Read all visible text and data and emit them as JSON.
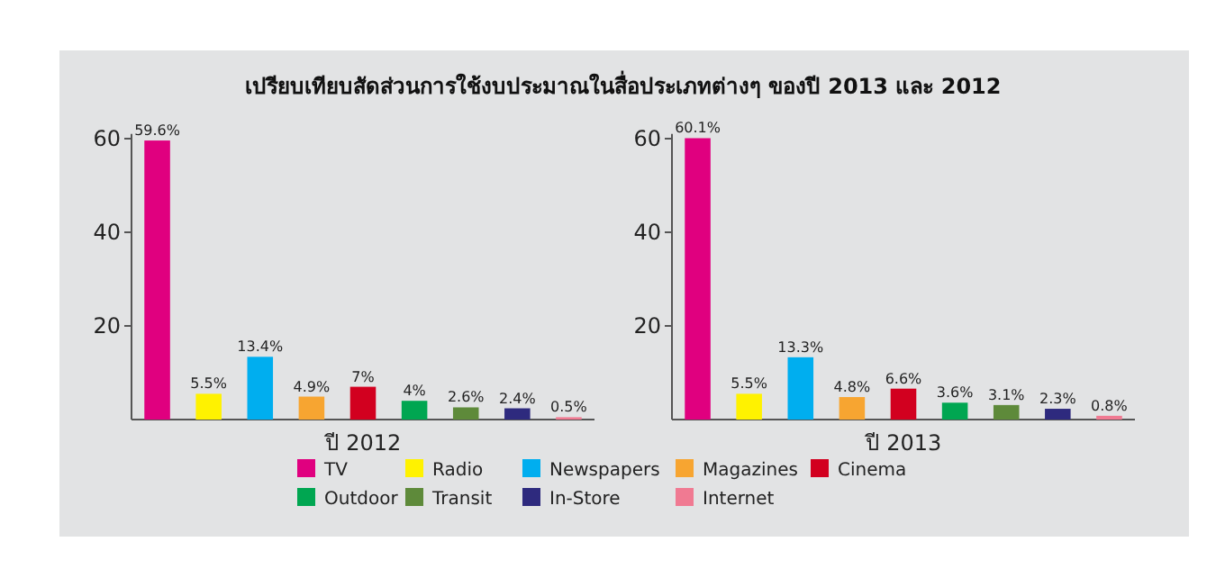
{
  "chart_data": [
    {
      "type": "bar",
      "title": "เปรียบเทียบสัดส่วนการใช้งบประมาณในสื่อประเภทต่างๆ ของปี 2013 และ 2012",
      "xlabel": "ปี 2012",
      "categories": [
        null
      ],
      "series": [
        {
          "name": "TV",
          "color": "#e0007f",
          "values": [
            59.6
          ],
          "value_labels": [
            "59.6%"
          ]
        },
        {
          "name": "Radio",
          "color": "#fff200",
          "values": [
            5.5
          ],
          "value_labels": [
            "5.5%"
          ]
        },
        {
          "name": "Newspapers",
          "color": "#00aeef",
          "values": [
            13.4
          ],
          "value_labels": [
            "13.4%"
          ]
        },
        {
          "name": "Magazines",
          "color": "#f7a531",
          "values": [
            4.9
          ],
          "value_labels": [
            "4.9%"
          ]
        },
        {
          "name": "Cinema",
          "color": "#d2001f",
          "values": [
            7
          ],
          "value_labels": [
            "7%"
          ]
        },
        {
          "name": "Outdoor",
          "color": "#00a651",
          "values": [
            4
          ],
          "value_labels": [
            "4%"
          ]
        },
        {
          "name": "Transit",
          "color": "#5e8a3a",
          "values": [
            2.6
          ],
          "value_labels": [
            "2.6%"
          ]
        },
        {
          "name": "In-Store",
          "color": "#2e2a7e",
          "values": [
            2.4
          ],
          "value_labels": [
            "2.4%"
          ]
        },
        {
          "name": "Internet",
          "color": "#f07a92",
          "values": [
            0.5
          ],
          "value_labels": [
            "0.5%"
          ]
        }
      ],
      "ylim": [
        0,
        61
      ],
      "yticks": [
        20,
        40,
        60
      ],
      "tick_labels": "y",
      "legend": "bottom"
    },
    {
      "type": "bar",
      "xlabel": "ปี 2013",
      "categories": [
        null
      ],
      "series": [
        {
          "color": "#e0007f",
          "values": [
            60.1
          ],
          "value_labels": [
            "60.1%"
          ]
        },
        {
          "color": "#fff200",
          "values": [
            5.5
          ],
          "value_labels": [
            "5.5%"
          ]
        },
        {
          "color": "#00aeef",
          "values": [
            13.3
          ],
          "value_labels": [
            "13.3%"
          ]
        },
        {
          "color": "#f7a531",
          "values": [
            4.8
          ],
          "value_labels": [
            "4.8%"
          ]
        },
        {
          "color": "#d2001f",
          "values": [
            6.6
          ],
          "value_labels": [
            "6.6%"
          ]
        },
        {
          "color": "#00a651",
          "values": [
            3.6
          ],
          "value_labels": [
            "3.6%"
          ]
        },
        {
          "color": "#5e8a3a",
          "values": [
            3.1
          ],
          "value_labels": [
            "3.1%"
          ]
        },
        {
          "color": "#2e2a7e",
          "values": [
            2.3
          ],
          "value_labels": [
            "2.3%"
          ]
        },
        {
          "color": "#f07a92",
          "values": [
            0.8
          ],
          "value_labels": [
            "0.8%"
          ]
        }
      ],
      "ylim": [
        0,
        61
      ],
      "yticks": [
        20,
        40,
        60
      ],
      "tick_labels": "y"
    }
  ]
}
